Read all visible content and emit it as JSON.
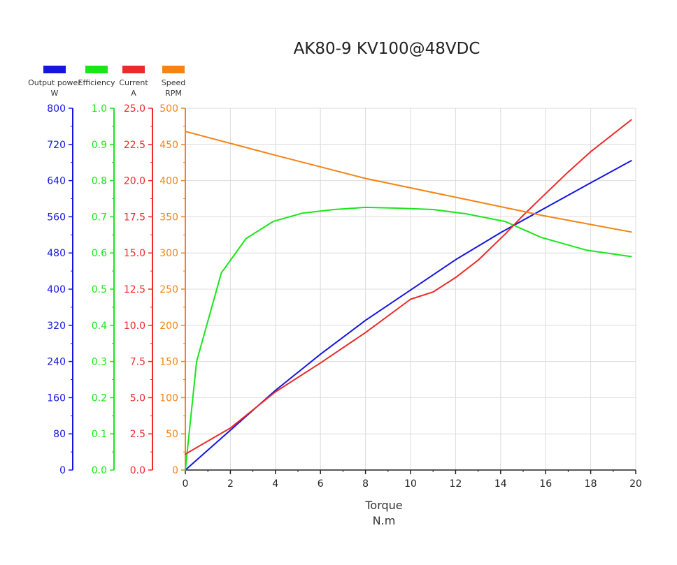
{
  "chart_data": {
    "type": "line",
    "title": "AK80-9 KV100@48VDC",
    "xlabel": "Torque",
    "xunit": "N.m",
    "xlim": [
      0,
      20
    ],
    "xticks": [
      "0",
      "2",
      "4",
      "6",
      "8",
      "10",
      "12",
      "14",
      "16",
      "18",
      "20"
    ],
    "grid": true,
    "legend_placement": "top-left",
    "axes": [
      {
        "id": "power",
        "name": "Output power",
        "unit": "W",
        "color": "#1515e0",
        "ylim": [
          0,
          800
        ],
        "ticks": [
          "0",
          "80",
          "160",
          "240",
          "320",
          "400",
          "480",
          "560",
          "640",
          "720",
          "800"
        ]
      },
      {
        "id": "efficiency",
        "name": "Efficiency",
        "unit": "",
        "color": "#19e619",
        "ylim": [
          0,
          1
        ],
        "ticks": [
          "0.0",
          "0.1",
          "0.2",
          "0.3",
          "0.4",
          "0.5",
          "0.6",
          "0.7",
          "0.8",
          "0.9",
          "1.0"
        ]
      },
      {
        "id": "current",
        "name": "Current",
        "unit": "A",
        "color": "#ec2a2a",
        "ylim": [
          0,
          25
        ],
        "ticks": [
          "0.0",
          "2.5",
          "5.0",
          "7.5",
          "10.0",
          "12.5",
          "15.0",
          "17.5",
          "20.0",
          "22.5",
          "25.0"
        ]
      },
      {
        "id": "speed",
        "name": "Speed",
        "unit": "RPM",
        "color": "#f48414",
        "ylim": [
          0,
          500
        ],
        "ticks": [
          "0",
          "50",
          "100",
          "150",
          "200",
          "250",
          "300",
          "350",
          "400",
          "450",
          "500"
        ]
      }
    ],
    "series": [
      {
        "axis": "power",
        "x": [
          0,
          2,
          4,
          6,
          8,
          10,
          12,
          14,
          16,
          18,
          19.8
        ],
        "y": [
          0,
          88,
          176,
          256,
          331,
          398,
          465,
          525,
          580,
          635,
          684
        ]
      },
      {
        "axis": "efficiency",
        "x": [
          0,
          0.5,
          1.6,
          2.7,
          3.9,
          5.2,
          6.6,
          8.0,
          9.4,
          11.0,
          12.5,
          14.2,
          15.8,
          17.8,
          19.8
        ],
        "y": [
          0.0,
          0.3,
          0.545,
          0.64,
          0.687,
          0.71,
          0.72,
          0.726,
          0.724,
          0.72,
          0.708,
          0.687,
          0.643,
          0.608,
          0.59
        ]
      },
      {
        "axis": "current",
        "x": [
          0,
          2,
          4,
          6,
          8,
          10,
          11,
          12,
          13,
          14.2,
          15,
          16,
          17,
          18,
          19.8
        ],
        "y": [
          1.1,
          2.9,
          5.4,
          7.4,
          9.5,
          11.8,
          12.3,
          13.3,
          14.5,
          16.3,
          17.6,
          19.1,
          20.6,
          22.0,
          24.2
        ]
      },
      {
        "axis": "speed",
        "x": [
          0,
          4,
          8,
          12,
          16,
          19.8
        ],
        "y": [
          468,
          435,
          403,
          377,
          351,
          329
        ]
      }
    ]
  }
}
